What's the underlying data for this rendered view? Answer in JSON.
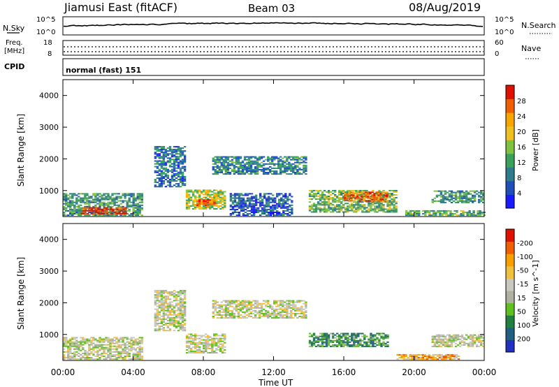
{
  "header": {
    "station": "Jiamusi East (fitACF)",
    "beam": "Beam 03",
    "date": "08/Aug/2019"
  },
  "nsky_panel": {
    "left_label": "N.Sky",
    "right_label": "N.Search",
    "left_ticks": [
      "10^5",
      "10^0"
    ],
    "right_ticks": [
      "10^5",
      "10^0"
    ]
  },
  "freq_panel": {
    "left_label_1": "Freq.",
    "left_label_2": "[MHz]",
    "right_label": "Nave",
    "left_ticks": [
      "18",
      "8"
    ],
    "right_ticks": [
      "60",
      "0"
    ]
  },
  "cpid_panel": {
    "label": "CPID",
    "mode_text": "normal (fast) 151"
  },
  "x_axis": {
    "ticks": [
      "00:00",
      "04:00",
      "08:00",
      "12:00",
      "16:00",
      "20:00",
      "00:00"
    ],
    "label": "Time UT"
  },
  "chart_data": [
    {
      "type": "heatmap",
      "name": "power",
      "ylabel": "Slant Range [km]",
      "yticks": [
        1000,
        2000,
        3000,
        4000
      ],
      "ylim": [
        180,
        4500
      ],
      "xlim_hours": [
        0,
        24
      ],
      "colorbar": {
        "label": "Power [dB]",
        "tick_labels": [
          "4",
          "8",
          "12",
          "16",
          "20",
          "24",
          "28"
        ],
        "colors": [
          "#1a1aff",
          "#1f4fb8",
          "#2e7d8c",
          "#3aa05a",
          "#7fc241",
          "#f0c020",
          "#f7a500",
          "#f06000",
          "#e01000"
        ]
      },
      "regions": [
        {
          "t0": 0.0,
          "t1": 4.5,
          "r0": 200,
          "r1": 900,
          "level": 0.35
        },
        {
          "t0": 1.0,
          "t1": 3.6,
          "r0": 250,
          "r1": 450,
          "level": 0.95
        },
        {
          "t0": 5.2,
          "t1": 7.0,
          "r0": 1100,
          "r1": 2400,
          "level": 0.25
        },
        {
          "t0": 7.0,
          "t1": 9.2,
          "r0": 400,
          "r1": 1000,
          "level": 0.55
        },
        {
          "t0": 7.6,
          "t1": 8.6,
          "r0": 500,
          "r1": 700,
          "level": 0.85
        },
        {
          "t0": 8.5,
          "t1": 13.8,
          "r0": 1500,
          "r1": 2050,
          "level": 0.3
        },
        {
          "t0": 9.5,
          "t1": 13.0,
          "r0": 200,
          "r1": 900,
          "level": 0.2
        },
        {
          "t0": 14.0,
          "t1": 19.0,
          "r0": 300,
          "r1": 1000,
          "level": 0.45
        },
        {
          "t0": 16.0,
          "t1": 18.5,
          "r0": 650,
          "r1": 950,
          "level": 0.85
        },
        {
          "t0": 19.5,
          "t1": 24.0,
          "r0": 200,
          "r1": 350,
          "level": 0.4
        },
        {
          "t0": 21.0,
          "t1": 24.0,
          "r0": 600,
          "r1": 1000,
          "level": 0.35
        }
      ]
    },
    {
      "type": "heatmap",
      "name": "velocity",
      "ylabel": "Slant Range [km]",
      "yticks": [
        1000,
        2000,
        3000,
        4000
      ],
      "ylim": [
        180,
        4500
      ],
      "xlim_hours": [
        0,
        24
      ],
      "colorbar": {
        "label": "Velocity [m s^-1]",
        "tick_labels": [
          "200",
          "100",
          "50",
          "15",
          "-15",
          "-50",
          "-100",
          "-200"
        ],
        "colors": [
          "#2030c0",
          "#206080",
          "#208040",
          "#60c020",
          "#b0b0a0",
          "#c8c8c0",
          "#f0c040",
          "#f8a000",
          "#f06000",
          "#e01000"
        ]
      },
      "regions": [
        {
          "t0": 0.0,
          "t1": 4.5,
          "r0": 200,
          "r1": 900,
          "level": 0.5
        },
        {
          "t0": 5.2,
          "t1": 7.0,
          "r0": 1100,
          "r1": 2400,
          "level": 0.5
        },
        {
          "t0": 7.0,
          "t1": 9.2,
          "r0": 400,
          "r1": 1000,
          "level": 0.5
        },
        {
          "t0": 8.5,
          "t1": 13.8,
          "r0": 1500,
          "r1": 2050,
          "level": 0.5
        },
        {
          "t0": 14.0,
          "t1": 18.5,
          "r0": 600,
          "r1": 1050,
          "level": 0.28
        },
        {
          "t0": 19.0,
          "t1": 22.5,
          "r0": 200,
          "r1": 350,
          "level": 0.72
        },
        {
          "t0": 21.0,
          "t1": 24.0,
          "r0": 600,
          "r1": 1000,
          "level": 0.5
        }
      ]
    }
  ]
}
